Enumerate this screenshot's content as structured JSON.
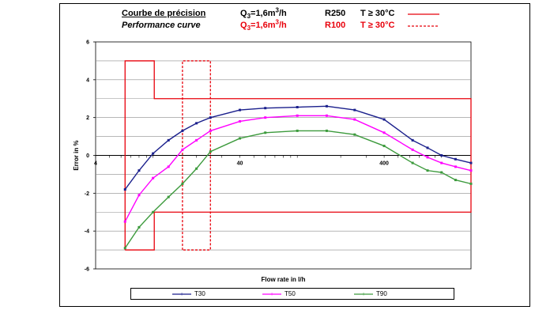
{
  "header": {
    "row1": {
      "title": "Courbe de précision",
      "q_prefix": "Q",
      "q_sub": "3",
      "q_value": "=1,6m",
      "q_sup": "3",
      "q_unit": "/h",
      "ratio": "R250",
      "temp": "T ≥ 30°C"
    },
    "row2": {
      "title": "Performance curve",
      "q_prefix": "Q",
      "q_sub": "3",
      "q_value": "=1,6m",
      "q_sup": "3",
      "q_unit": "/h",
      "ratio": "R100",
      "temp": "T ≥ 30°C"
    }
  },
  "colors": {
    "limit": "#e8000b",
    "T30": "#1a1f8c",
    "T50": "#ff00ff",
    "T90": "#3c9a3c"
  },
  "chart_data": {
    "type": "line",
    "title": "",
    "xlabel": "Flow rate in l/h",
    "ylabel": "Error in %",
    "xscale": "log",
    "xlim": [
      4,
      1600
    ],
    "ylim": [
      -6,
      6
    ],
    "yticks": [
      6,
      4,
      2,
      0,
      -2,
      -4,
      -6
    ],
    "yticks_labels": [
      "6",
      "4",
      "2",
      "0",
      "-2",
      "-4",
      "-6"
    ],
    "xticks": [
      4,
      40,
      400
    ],
    "xticks_labels": [
      "4",
      "40",
      "400"
    ],
    "grid": true,
    "legend": "bottom",
    "limits": [
      {
        "name": "R250",
        "style": "solid",
        "x": [
          6.4,
          6.4,
          10.2,
          10.2,
          1600,
          1600,
          10.2,
          10.2,
          6.4
        ],
        "y": [
          -5,
          5,
          5,
          3,
          3,
          -3,
          -3,
          -5,
          -5
        ]
      },
      {
        "name": "R100",
        "style": "dashed",
        "x": [
          16,
          16,
          25,
          25,
          16
        ],
        "y": [
          -5,
          5,
          5,
          -5,
          -5
        ]
      }
    ],
    "series": [
      {
        "name": "T30",
        "x": [
          6.4,
          8,
          10,
          12.8,
          16,
          20,
          25,
          40,
          60,
          100,
          160,
          250,
          400,
          630,
          800,
          1000,
          1250,
          1600
        ],
        "y": [
          -1.8,
          -0.8,
          0.1,
          0.8,
          1.3,
          1.7,
          2.0,
          2.4,
          2.5,
          2.55,
          2.6,
          2.4,
          1.9,
          0.8,
          0.4,
          0.0,
          -0.2,
          -0.4
        ]
      },
      {
        "name": "T50",
        "x": [
          6.4,
          8,
          10,
          12.8,
          16,
          20,
          25,
          40,
          60,
          100,
          160,
          250,
          400,
          630,
          800,
          1000,
          1250,
          1600
        ],
        "y": [
          -3.5,
          -2.1,
          -1.2,
          -0.6,
          0.3,
          0.8,
          1.3,
          1.8,
          2.0,
          2.1,
          2.1,
          1.9,
          1.2,
          0.3,
          -0.1,
          -0.4,
          -0.6,
          -0.8
        ]
      },
      {
        "name": "T90",
        "x": [
          6.4,
          8,
          10,
          12.8,
          16,
          20,
          25,
          40,
          60,
          100,
          160,
          250,
          400,
          630,
          800,
          1000,
          1250,
          1600
        ],
        "y": [
          -4.9,
          -3.8,
          -3.0,
          -2.2,
          -1.5,
          -0.7,
          0.2,
          0.9,
          1.2,
          1.3,
          1.3,
          1.1,
          0.5,
          -0.4,
          -0.8,
          -0.9,
          -1.3,
          -1.5
        ]
      }
    ]
  }
}
